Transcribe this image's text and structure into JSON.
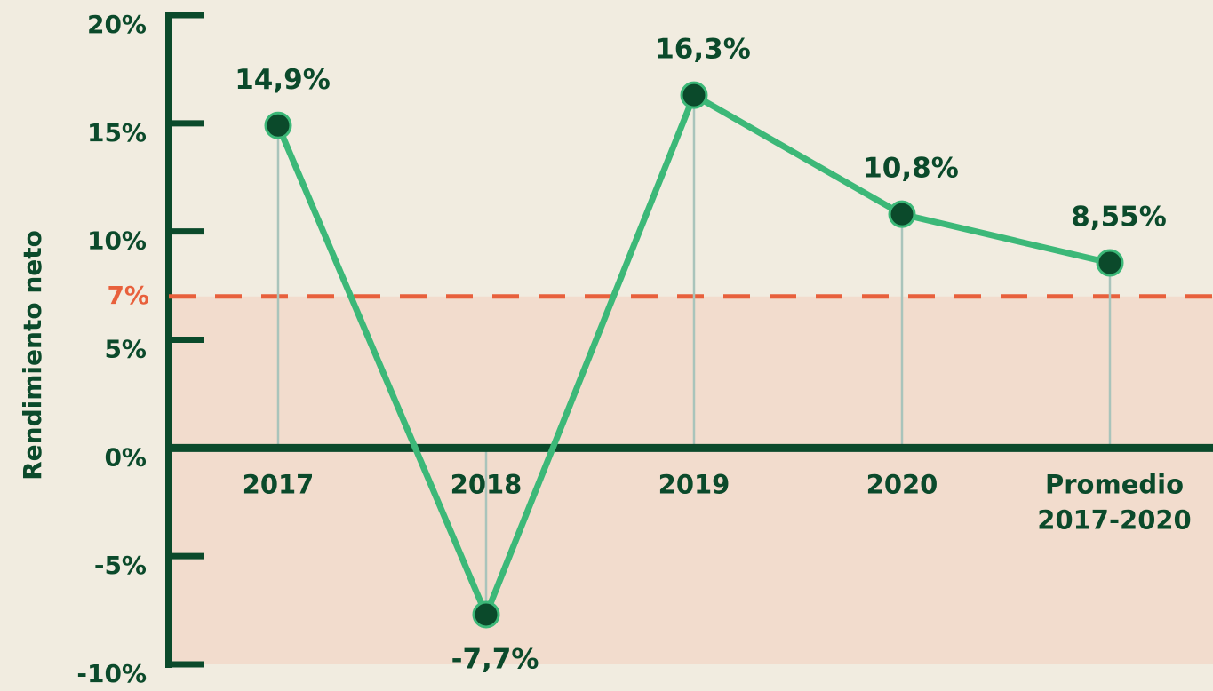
{
  "chart_data": {
    "type": "line",
    "y_label": "Rendimiento neto",
    "categories": [
      "2017",
      "2018",
      "2019",
      "2020",
      "Promedio 2017-2020"
    ],
    "series": [
      {
        "name": "Rendimiento neto",
        "color": "#3cb878",
        "values": [
          14.9,
          -7.7,
          16.3,
          10.8,
          8.55
        ],
        "value_labels": [
          "14,9%",
          "-7,7%",
          "16,3%",
          "10,8%",
          "8,55%"
        ]
      }
    ],
    "ylim": [
      -10,
      20
    ],
    "yticks": [
      {
        "value": -10,
        "label": "-10%"
      },
      {
        "value": -5,
        "label": "-5%"
      },
      {
        "value": 0,
        "label": "0%"
      },
      {
        "value": 5,
        "label": "5%"
      },
      {
        "value": 10,
        "label": "10%"
      },
      {
        "value": 15,
        "label": "15%"
      },
      {
        "value": 20,
        "label": "20%"
      }
    ],
    "reference_line": {
      "value": 7,
      "label": "7%",
      "color": "#e8603c"
    },
    "marker_color": "#0b4a2b"
  }
}
